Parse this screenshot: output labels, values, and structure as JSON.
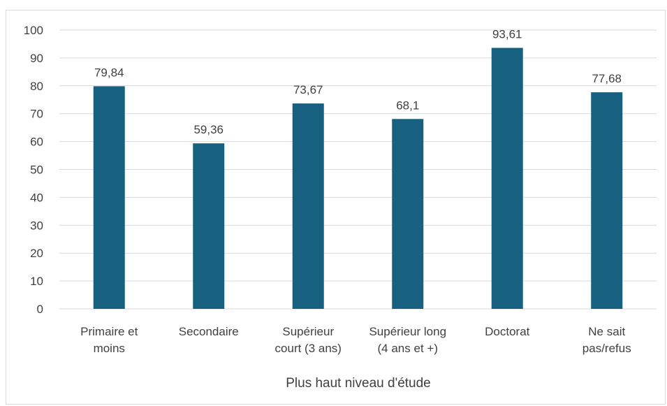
{
  "chart_data": {
    "type": "bar",
    "title": "",
    "xlabel": "Plus haut niveau d'étude",
    "ylabel": "",
    "ylim": [
      0,
      100
    ],
    "yticks": [
      "0",
      "10",
      "20",
      "30",
      "40",
      "50",
      "60",
      "70",
      "80",
      "90",
      "100"
    ],
    "grid": true,
    "categories": [
      [
        "Primaire et",
        "moins"
      ],
      [
        "Secondaire"
      ],
      [
        "Supérieur",
        "court (3 ans)"
      ],
      [
        "Supérieur long",
        "(4 ans et +)"
      ],
      [
        "Doctorat"
      ],
      [
        "Ne sait",
        "pas/refus"
      ]
    ],
    "values": [
      79.84,
      59.36,
      73.67,
      68.1,
      93.61,
      77.68
    ],
    "value_labels": [
      "79,84",
      "59,36",
      "73,67",
      "68,1",
      "93,61",
      "77,68"
    ],
    "bar_color": "#17607F",
    "grid_color": "#d9d9d9",
    "text_color": "#404040"
  }
}
